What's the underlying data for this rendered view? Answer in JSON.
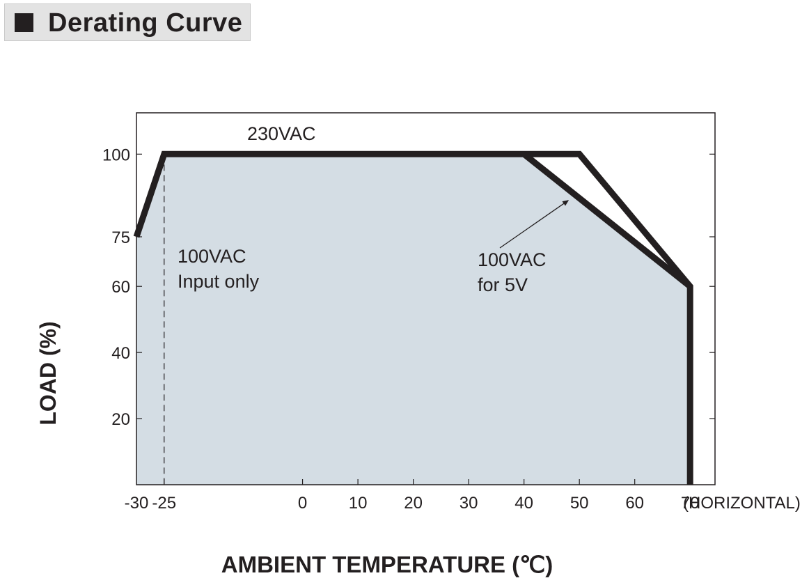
{
  "title_block": {
    "icon": "black-square-icon",
    "title": "Derating Curve"
  },
  "chart_data": {
    "type": "line",
    "xlabel": "AMBIENT TEMPERATURE (℃)",
    "ylabel": "LOAD (%)",
    "x_axis_note": "(HORIZONTAL)",
    "xlim": [
      -30,
      70
    ],
    "ylim": [
      0,
      100
    ],
    "x_ticks": [
      -30,
      -25,
      0,
      10,
      20,
      30,
      40,
      50,
      60,
      70
    ],
    "x_tick_labels": [
      "-30",
      "-25",
      "0",
      "10",
      "20",
      "30",
      "40",
      "50",
      "60",
      "70"
    ],
    "y_ticks": [
      20,
      40,
      60,
      75,
      100
    ],
    "y_tick_labels": [
      "20",
      "40",
      "60",
      "75",
      "100"
    ],
    "grid": false,
    "series": [
      {
        "name": "230VAC",
        "x": [
          -30,
          -25,
          50,
          70,
          70
        ],
        "y": [
          75,
          100,
          100,
          60,
          0
        ]
      },
      {
        "name": "100VAC for 5V",
        "x": [
          40,
          70
        ],
        "y": [
          100,
          60
        ]
      }
    ],
    "shaded_region": {
      "x": [
        -30,
        -25,
        40,
        70,
        70,
        -30
      ],
      "y": [
        75,
        100,
        100,
        60,
        0,
        0
      ]
    },
    "reference_line": {
      "x": -25,
      "style": "dashed"
    },
    "annotations": [
      {
        "text": "230VAC"
      },
      {
        "text": "100VAC",
        "text2": "Input only"
      },
      {
        "text": "100VAC",
        "text2": "for 5V",
        "arrow_to": {
          "x": 48,
          "y": 86
        }
      }
    ],
    "colors": {
      "line": "#231f20",
      "fill": "#d4dde4",
      "frame": "#231f20"
    }
  }
}
